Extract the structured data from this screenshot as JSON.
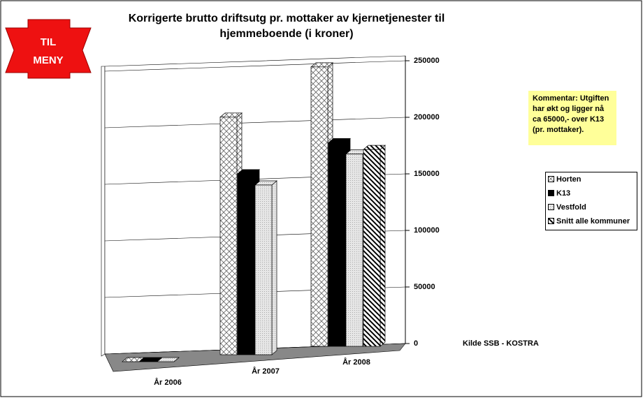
{
  "menu_button": "TIL MENY",
  "chart_data": {
    "type": "bar3d",
    "title": "Korrigerte brutto driftsutg pr. mottaker av kjernetjenester til hjemmeboende (i kroner)",
    "categories": [
      "År 2006",
      "År 2007",
      "År 2008"
    ],
    "series": [
      {
        "name": "Horten",
        "color": "#ffffff",
        "values": [
          0,
          210000,
          247000
        ]
      },
      {
        "name": "K13",
        "color": "#000000",
        "values": [
          0,
          160000,
          180000
        ]
      },
      {
        "name": "Vestfold",
        "color": "#e0e0e0",
        "values": [
          0,
          150000,
          170000
        ]
      },
      {
        "name": "Snitt alle kommuner",
        "color": "#ffffff",
        "values": [
          null,
          null,
          174000
        ]
      }
    ],
    "ylim": [
      0,
      250000
    ],
    "yticks": [
      0,
      50000,
      100000,
      150000,
      200000,
      250000
    ],
    "grid": true,
    "legend": "right",
    "annotations": [
      "Kommentar: Utgiften har økt og ligger nå ca 65000,- over K13 (pr. mottaker).",
      "Kilde SSB - KOSTRA"
    ]
  }
}
